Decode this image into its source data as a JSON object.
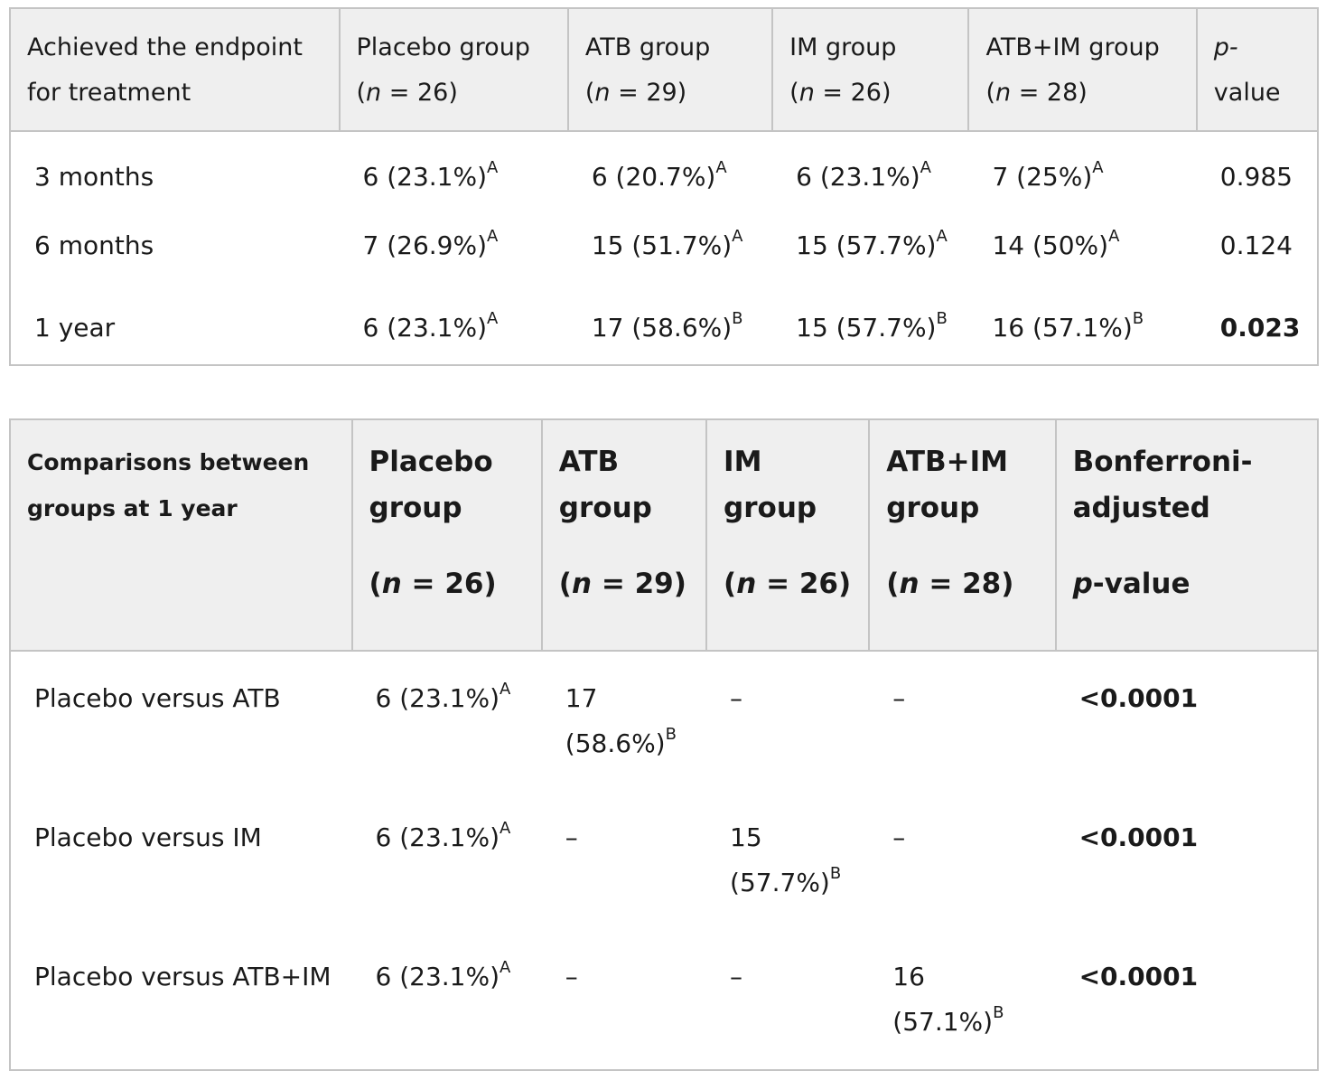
{
  "table1": {
    "headers": [
      {
        "line1": "Achieved the endpoint",
        "line2": "for treatment"
      },
      {
        "line1": "Placebo group",
        "n": "26"
      },
      {
        "line1": "ATB group",
        "n": "29"
      },
      {
        "line1": "IM group",
        "n": "26"
      },
      {
        "line1": "ATB+IM group",
        "n": "28"
      },
      {
        "line1": "p-",
        "line2": "value"
      }
    ],
    "rows": [
      {
        "label": "3 months",
        "cells": [
          {
            "v": "6 (23.1%)",
            "s": "A"
          },
          {
            "v": "6 (20.7%)",
            "s": "A"
          },
          {
            "v": "6 (23.1%)",
            "s": "A"
          },
          {
            "v": "7 (25%)",
            "s": "A"
          }
        ],
        "p": "0.985"
      },
      {
        "label": "6 months",
        "cells": [
          {
            "v": "7 (26.9%)",
            "s": "A"
          },
          {
            "v": "15 (51.7%)",
            "s": "A"
          },
          {
            "v": "15 (57.7%)",
            "s": "A"
          },
          {
            "v": "14 (50%)",
            "s": "A"
          }
        ],
        "p": "0.124"
      },
      {
        "label": "1 year",
        "cells": [
          {
            "v": "6 (23.1%)",
            "s": "A"
          },
          {
            "v": "17 (58.6%)",
            "s": "B"
          },
          {
            "v": "15 (57.7%)",
            "s": "B"
          },
          {
            "v": "16 (57.1%)",
            "s": "B"
          }
        ],
        "p": "0.023"
      }
    ]
  },
  "table2": {
    "headers": [
      {
        "line1": "Comparisons between",
        "line2": "groups at 1 year"
      },
      {
        "line1": "Placebo",
        "line2": "group",
        "n": "26"
      },
      {
        "line1": "ATB",
        "line2": "group",
        "n": "29"
      },
      {
        "line1": "IM",
        "line2": "group",
        "n": "26"
      },
      {
        "line1": "ATB+IM",
        "line2": "group",
        "n": "28"
      },
      {
        "line1": "Bonferroni-",
        "line2": "adjusted",
        "pv": "-value"
      }
    ],
    "rows": [
      {
        "label": "Placebo versus ATB",
        "cells": [
          {
            "v": "6 (23.1%)",
            "s": "A"
          },
          {
            "v1": "17",
            "v2": "(58.6%)",
            "s": "B"
          },
          {
            "v": "–"
          },
          {
            "v": "–"
          }
        ],
        "p": "<0.0001"
      },
      {
        "label": "Placebo versus IM",
        "cells": [
          {
            "v": "6 (23.1%)",
            "s": "A"
          },
          {
            "v": "–"
          },
          {
            "v1": "15",
            "v2": "(57.7%)",
            "s": "B"
          },
          {
            "v": "–"
          }
        ],
        "p": "<0.0001"
      },
      {
        "label": "Placebo versus ATB+IM",
        "cells": [
          {
            "v": "6 (23.1%)",
            "s": "A"
          },
          {
            "v": "–"
          },
          {
            "v": "–"
          },
          {
            "v1": "16",
            "v2": "(57.1%)",
            "s": "B"
          }
        ],
        "p": "<0.0001"
      }
    ]
  }
}
